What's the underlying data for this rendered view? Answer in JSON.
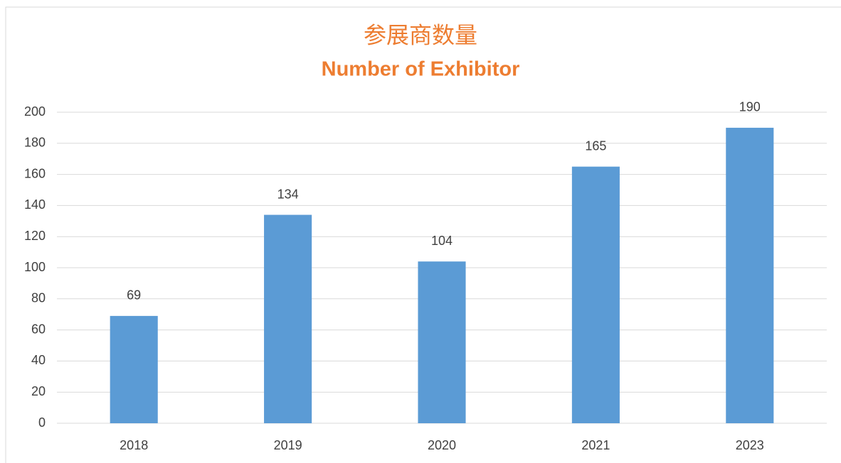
{
  "chart_data": {
    "type": "bar",
    "title": "参展商数量",
    "subtitle": "Number of Exhibitor",
    "categories": [
      "2018",
      "2019",
      "2020",
      "2021",
      "2023"
    ],
    "values": [
      69,
      134,
      104,
      165,
      190
    ],
    "color": "#5b9bd5",
    "title_color": "#ed7d31",
    "ylim": [
      0,
      200
    ],
    "yticks": [
      0,
      20,
      40,
      60,
      80,
      100,
      120,
      140,
      160,
      180,
      200
    ],
    "grid": true
  }
}
